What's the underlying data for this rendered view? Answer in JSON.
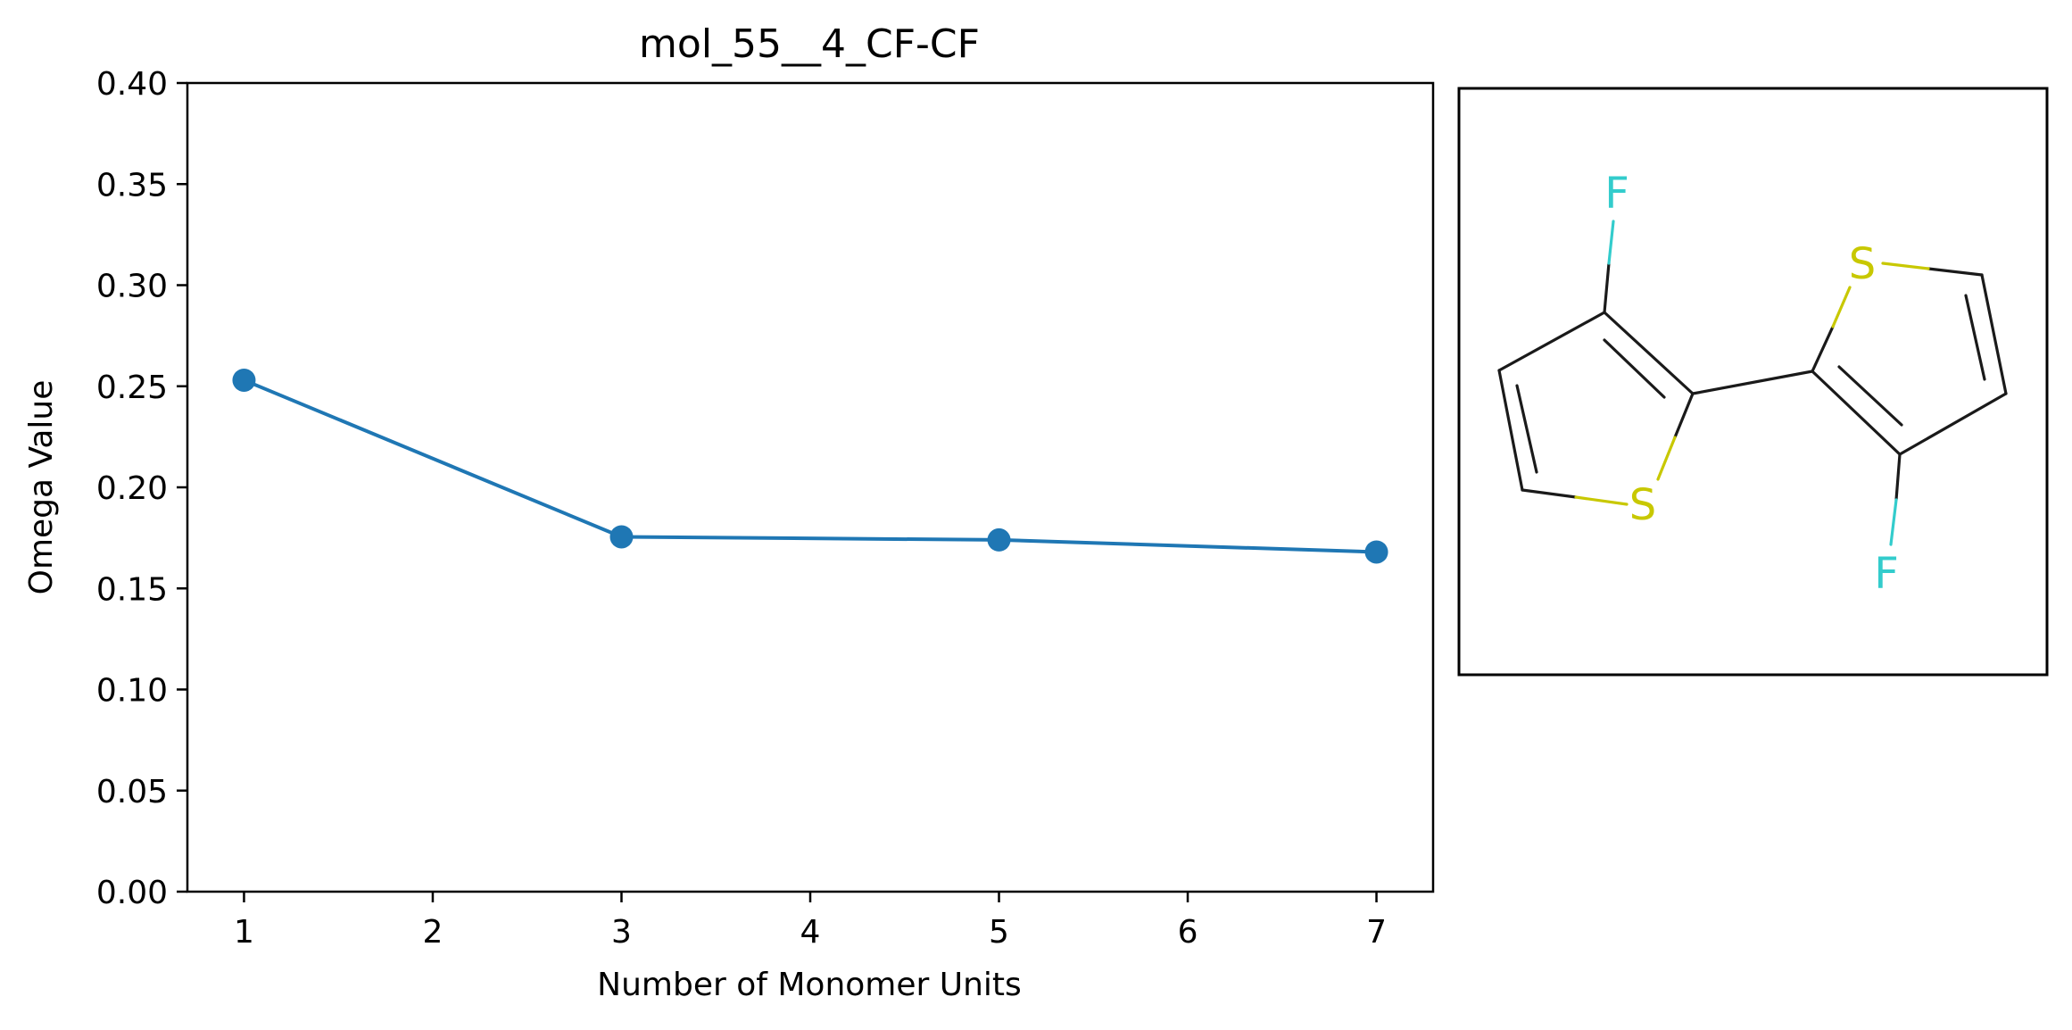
{
  "chart_data": {
    "type": "line",
    "title": "mol_55__4_CF-CF",
    "xlabel": "Number of Monomer Units",
    "ylabel": "Omega Value",
    "x": [
      1,
      3,
      5,
      7
    ],
    "series": [
      {
        "values": [
          0.253,
          0.1755,
          0.174,
          0.168
        ],
        "color": "#1f77b4"
      }
    ],
    "xlim": [
      0.7,
      7.3
    ],
    "ylim": [
      0.0,
      0.4
    ],
    "xticks": [
      1,
      2,
      3,
      4,
      5,
      6,
      7
    ],
    "xtick_labels": [
      "1",
      "2",
      "3",
      "4",
      "5",
      "6",
      "7"
    ],
    "yticks": [
      0.0,
      0.05,
      0.1,
      0.15,
      0.2,
      0.25,
      0.3,
      0.35,
      0.4
    ],
    "ytick_labels": [
      "0.00",
      "0.05",
      "0.10",
      "0.15",
      "0.20",
      "0.25",
      "0.30",
      "0.35",
      "0.40"
    ],
    "grid": false,
    "legend": "none"
  },
  "structure": {
    "atom_labels": {
      "f_top": "F",
      "s_left": "S",
      "s_right": "S",
      "f_bottom": "F"
    },
    "colors": {
      "bond": "#1a1a1a",
      "sulfur": "#c8c800",
      "fluorine": "#33cccc"
    }
  }
}
